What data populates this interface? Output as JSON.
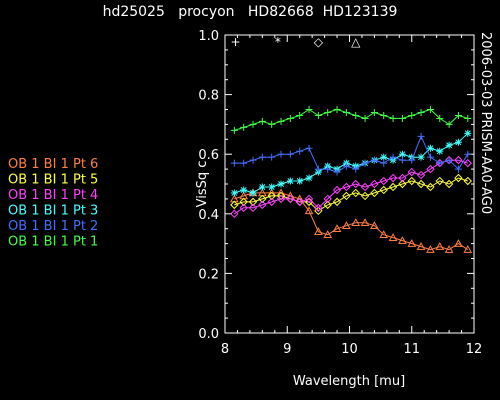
{
  "chart_data": {
    "type": "line",
    "title": "hd25025   procyon   HD82668  HD123139",
    "side_label": "2006-03-03 PRISM-AA0-AG0",
    "xlabel": "Wavelength [mu]",
    "ylabel": "VisSq c",
    "xlim": [
      8,
      12
    ],
    "ylim": [
      0.0,
      1.0
    ],
    "x_ticks": [
      8,
      9,
      10,
      11,
      12
    ],
    "y_ticks": [
      0.0,
      0.2,
      0.4,
      0.6,
      0.8,
      1.0
    ],
    "x_tick_labels": [
      "8",
      "9",
      "10",
      "11",
      "12"
    ],
    "y_tick_labels": [
      "0.0",
      "0.2",
      "0.4",
      "0.6",
      "0.8",
      "1.0"
    ],
    "grid": false,
    "legend_position": "left",
    "symbol_key": [
      {
        "symbol": "+",
        "x": 8.17
      },
      {
        "symbol": "*",
        "x": 8.85
      },
      {
        "symbol": "◇",
        "x": 9.5
      },
      {
        "symbol": "△",
        "x": 10.1
      }
    ],
    "x": [
      8.15,
      8.3,
      8.45,
      8.6,
      8.75,
      8.9,
      9.05,
      9.2,
      9.35,
      9.5,
      9.65,
      9.8,
      9.95,
      10.1,
      10.25,
      10.4,
      10.55,
      10.7,
      10.85,
      11.0,
      11.15,
      11.3,
      11.45,
      11.6,
      11.75,
      11.9
    ],
    "series": [
      {
        "name": "OB 1 BI 1 Pt 6",
        "color": "#ff7f40",
        "symbol": "triangle",
        "values": [
          0.45,
          0.46,
          0.47,
          0.47,
          0.47,
          0.47,
          0.46,
          0.45,
          0.41,
          0.34,
          0.33,
          0.35,
          0.36,
          0.37,
          0.37,
          0.36,
          0.33,
          0.32,
          0.31,
          0.3,
          0.29,
          0.28,
          0.29,
          0.28,
          0.3,
          0.28
        ]
      },
      {
        "name": "OB 1 BI 1 Pt 5",
        "color": "#ffff40",
        "symbol": "diamond",
        "values": [
          0.43,
          0.44,
          0.44,
          0.45,
          0.46,
          0.46,
          0.45,
          0.44,
          0.44,
          0.41,
          0.43,
          0.44,
          0.46,
          0.47,
          0.46,
          0.47,
          0.48,
          0.49,
          0.5,
          0.51,
          0.5,
          0.49,
          0.51,
          0.5,
          0.52,
          0.51
        ]
      },
      {
        "name": "OB 1 BI 1 Pt 4",
        "color": "#ff40ff",
        "symbol": "diamond",
        "values": [
          0.4,
          0.42,
          0.42,
          0.43,
          0.44,
          0.45,
          0.45,
          0.44,
          0.45,
          0.42,
          0.45,
          0.48,
          0.49,
          0.5,
          0.49,
          0.5,
          0.51,
          0.52,
          0.52,
          0.54,
          0.53,
          0.55,
          0.57,
          0.58,
          0.58,
          0.57
        ]
      },
      {
        "name": "OB 1 BI 1 Pt 3",
        "color": "#40ffff",
        "symbol": "asterisk",
        "values": [
          0.47,
          0.48,
          0.47,
          0.49,
          0.49,
          0.5,
          0.51,
          0.51,
          0.52,
          0.54,
          0.56,
          0.55,
          0.57,
          0.56,
          0.57,
          0.58,
          0.59,
          0.58,
          0.6,
          0.59,
          0.59,
          0.62,
          0.61,
          0.63,
          0.64,
          0.67
        ]
      },
      {
        "name": "OB 1 BI 1 Pt 2",
        "color": "#4070ff",
        "symbol": "plus",
        "values": [
          0.57,
          0.57,
          0.58,
          0.59,
          0.59,
          0.6,
          0.6,
          0.61,
          0.62,
          0.55,
          0.55,
          0.54,
          0.56,
          0.55,
          0.57,
          0.58,
          0.57,
          0.59,
          0.58,
          0.58,
          0.66,
          0.59,
          0.57,
          0.58,
          0.55,
          0.6
        ]
      },
      {
        "name": "OB 1 BI 1 Pt 1",
        "color": "#40ff40",
        "symbol": "plus",
        "values": [
          0.68,
          0.69,
          0.7,
          0.71,
          0.7,
          0.71,
          0.72,
          0.73,
          0.75,
          0.73,
          0.74,
          0.75,
          0.74,
          0.73,
          0.72,
          0.74,
          0.73,
          0.72,
          0.72,
          0.73,
          0.74,
          0.75,
          0.72,
          0.7,
          0.73,
          0.72
        ]
      }
    ]
  }
}
